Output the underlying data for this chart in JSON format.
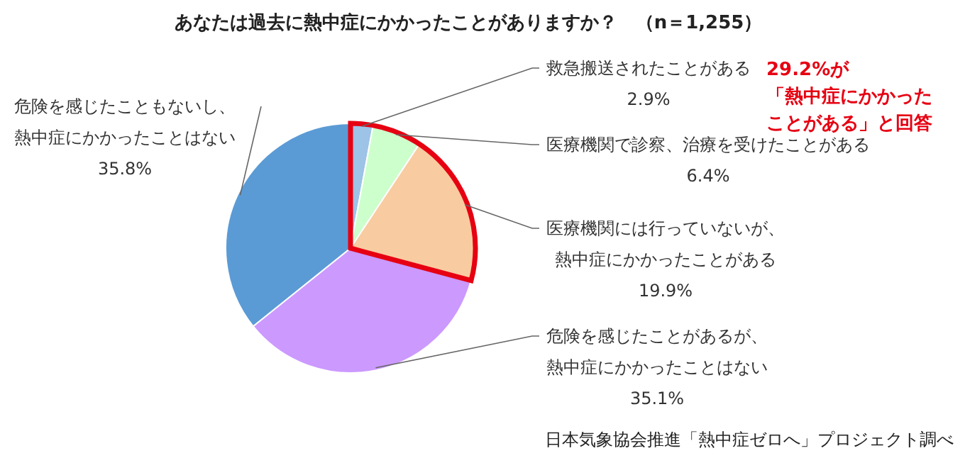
{
  "chart_data": {
    "type": "pie",
    "title": "あなたは過去に熱中症にかかったことがありますか？　（n＝1,255）",
    "categories": [
      "救急搬送されたことがある",
      "医療機関で診察、治療を受けたことがある",
      "医療機関には行っていないが、熱中症にかかったことがある",
      "危険を感じたことがあるが、熱中症にかかったことはない",
      "危険を感じたこともないし、熱中症にかかったことはない"
    ],
    "values": [
      2.9,
      6.4,
      19.9,
      35.1,
      35.8
    ],
    "colors": [
      "#9dc3e6",
      "#ccffcc",
      "#f8cba0",
      "#cc99ff",
      "#5b9bd5"
    ],
    "value_labels": [
      "2.9%",
      "6.4%",
      "19.9%",
      "35.1%",
      "35.8%"
    ],
    "annotations": [
      "29.2%が「熱中症にかかったことがある」と回答",
      "日本気象協会推進「熱中症ゼロへ」プロジェクト調べ"
    ]
  }
}
